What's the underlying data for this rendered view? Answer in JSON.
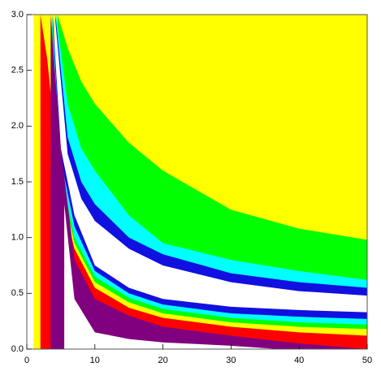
{
  "chart_data": {
    "type": "area",
    "xlim": [
      0,
      50
    ],
    "ylim": [
      0,
      3
    ],
    "xticks": [
      0,
      10,
      20,
      30,
      40,
      50
    ],
    "yticks": [
      {
        "value": 0,
        "label": "0.0"
      },
      0.5,
      {
        "value": 1,
        "label": "1.0"
      },
      1.5,
      {
        "value": 2,
        "label": "2.0"
      },
      2.5,
      {
        "value": 3,
        "label": "3.0"
      }
    ],
    "series": [
      {
        "color": "#ffff00",
        "x": [
          1,
          50
        ],
        "values": [
          3,
          3
        ]
      },
      {
        "color": "#00ff00",
        "x": [
          4.5,
          6,
          8,
          10,
          15,
          20,
          30,
          40,
          50
        ],
        "values": [
          3,
          2.7,
          2.4,
          2.2,
          1.85,
          1.6,
          1.25,
          1.08,
          0.98
        ]
      },
      {
        "color": "#00ffff",
        "x": [
          4.3,
          6,
          8,
          10,
          15,
          20,
          30,
          40,
          50
        ],
        "values": [
          3,
          2.2,
          1.8,
          1.6,
          1.2,
          0.95,
          0.8,
          0.7,
          0.62
        ]
      },
      {
        "color": "#1010e0",
        "x": [
          4.2,
          6,
          8,
          10,
          15,
          20,
          30,
          40,
          50
        ],
        "values": [
          3,
          1.9,
          1.5,
          1.3,
          1.0,
          0.85,
          0.68,
          0.6,
          0.55
        ]
      },
      {
        "color": "#ffffff",
        "x": [
          4.1,
          6,
          8,
          10,
          15,
          20,
          30,
          40,
          50
        ],
        "values": [
          3,
          1.75,
          1.35,
          1.15,
          0.9,
          0.75,
          0.6,
          0.52,
          0.48
        ]
      },
      {
        "color": "#1010e0",
        "x": [
          3.8,
          5,
          7,
          10,
          15,
          20,
          30,
          40,
          50
        ],
        "values": [
          3,
          1.8,
          1.2,
          0.75,
          0.55,
          0.45,
          0.38,
          0.35,
          0.33
        ]
      },
      {
        "color": "#00ffff",
        "x": [
          3.7,
          5,
          7,
          10,
          15,
          20,
          30,
          40,
          50
        ],
        "values": [
          3,
          1.7,
          1.1,
          0.7,
          0.5,
          0.4,
          0.32,
          0.29,
          0.27
        ]
      },
      {
        "color": "#00ff00",
        "x": [
          3.6,
          5,
          7,
          10,
          15,
          20,
          30,
          40,
          50
        ],
        "values": [
          3,
          1.6,
          1.0,
          0.65,
          0.46,
          0.36,
          0.28,
          0.24,
          0.22
        ]
      },
      {
        "color": "#ffff00",
        "x": [
          3.5,
          5,
          7,
          10,
          15,
          20,
          30,
          40,
          50
        ],
        "values": [
          3,
          1.5,
          0.95,
          0.6,
          0.42,
          0.32,
          0.24,
          0.2,
          0.18
        ]
      },
      {
        "color": "#ff0000",
        "x": [
          2,
          3,
          5,
          7,
          10,
          15,
          20,
          30,
          40,
          50
        ],
        "values": [
          3,
          2.6,
          1.4,
          0.9,
          0.55,
          0.37,
          0.28,
          0.2,
          0.15,
          0.12
        ]
      },
      {
        "color": "#800080",
        "x": [
          3.5,
          5,
          7,
          10,
          15,
          20,
          30,
          40,
          50
        ],
        "values": [
          3,
          1.8,
          0.8,
          0.45,
          0.3,
          0.2,
          0.12,
          0.05,
          0
        ]
      },
      {
        "color": "#ffffff",
        "x": [
          5.5,
          7,
          10,
          15,
          20,
          30,
          37
        ],
        "values": [
          1.3,
          0.45,
          0.15,
          0.09,
          0.06,
          0.03,
          0
        ]
      }
    ]
  }
}
